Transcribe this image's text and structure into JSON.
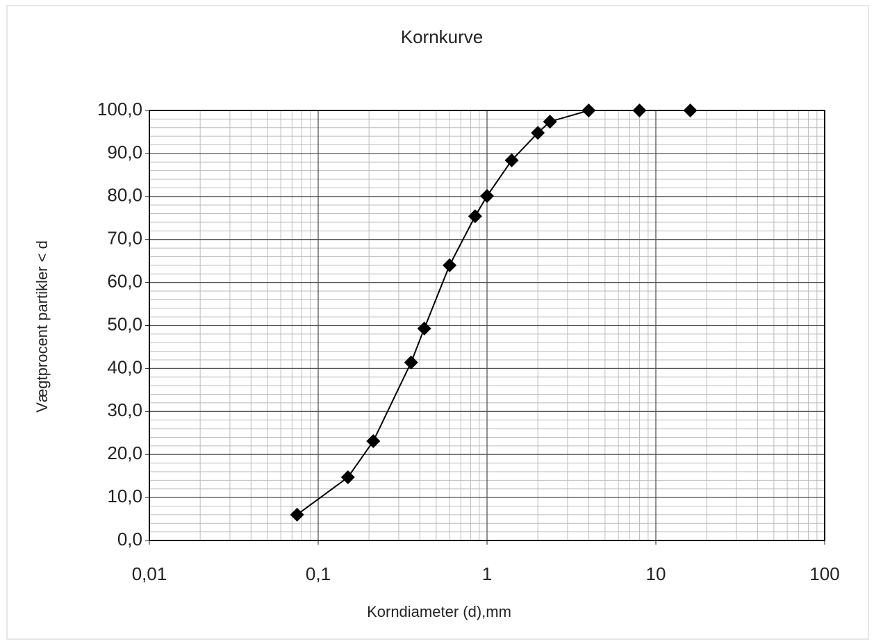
{
  "chart_data": {
    "type": "line",
    "title": "Kornkurve",
    "x_label": "Korndiameter (d),mm",
    "y_label": "Vægtprocent partikler < d",
    "x": [
      0.075,
      0.15,
      0.212,
      0.355,
      0.425,
      0.6,
      0.85,
      1,
      1.4,
      2,
      2.36,
      4,
      8,
      16
    ],
    "series": [
      {
        "name": "Kornkurve",
        "color": "#000000",
        "values": [
          6.0,
          14.7,
          23.1,
          41.4,
          49.3,
          64.0,
          75.4,
          80.1,
          88.4,
          94.8,
          97.4,
          100,
          100,
          100
        ]
      }
    ],
    "x_log": true,
    "xlim": [
      0.01,
      100
    ],
    "xticks": [
      {
        "value": 0.01,
        "label": "0,01"
      },
      {
        "value": 0.1,
        "label": "0,1"
      },
      1,
      10,
      100
    ],
    "ylim": [
      0,
      100
    ],
    "yticks": [
      {
        "value": 0,
        "label": "0,0"
      },
      {
        "value": 10,
        "label": "10,0"
      },
      {
        "value": 20,
        "label": "20,0"
      },
      {
        "value": 30,
        "label": "30,0"
      },
      {
        "value": 40,
        "label": "40,0"
      },
      {
        "value": 50,
        "label": "50,0"
      },
      {
        "value": 60,
        "label": "60,0"
      },
      {
        "value": 70,
        "label": "70,0"
      },
      {
        "value": 80,
        "label": "80,0"
      },
      {
        "value": 90,
        "label": "90,0"
      },
      {
        "value": 100,
        "label": "100,0"
      }
    ],
    "grid": true
  }
}
